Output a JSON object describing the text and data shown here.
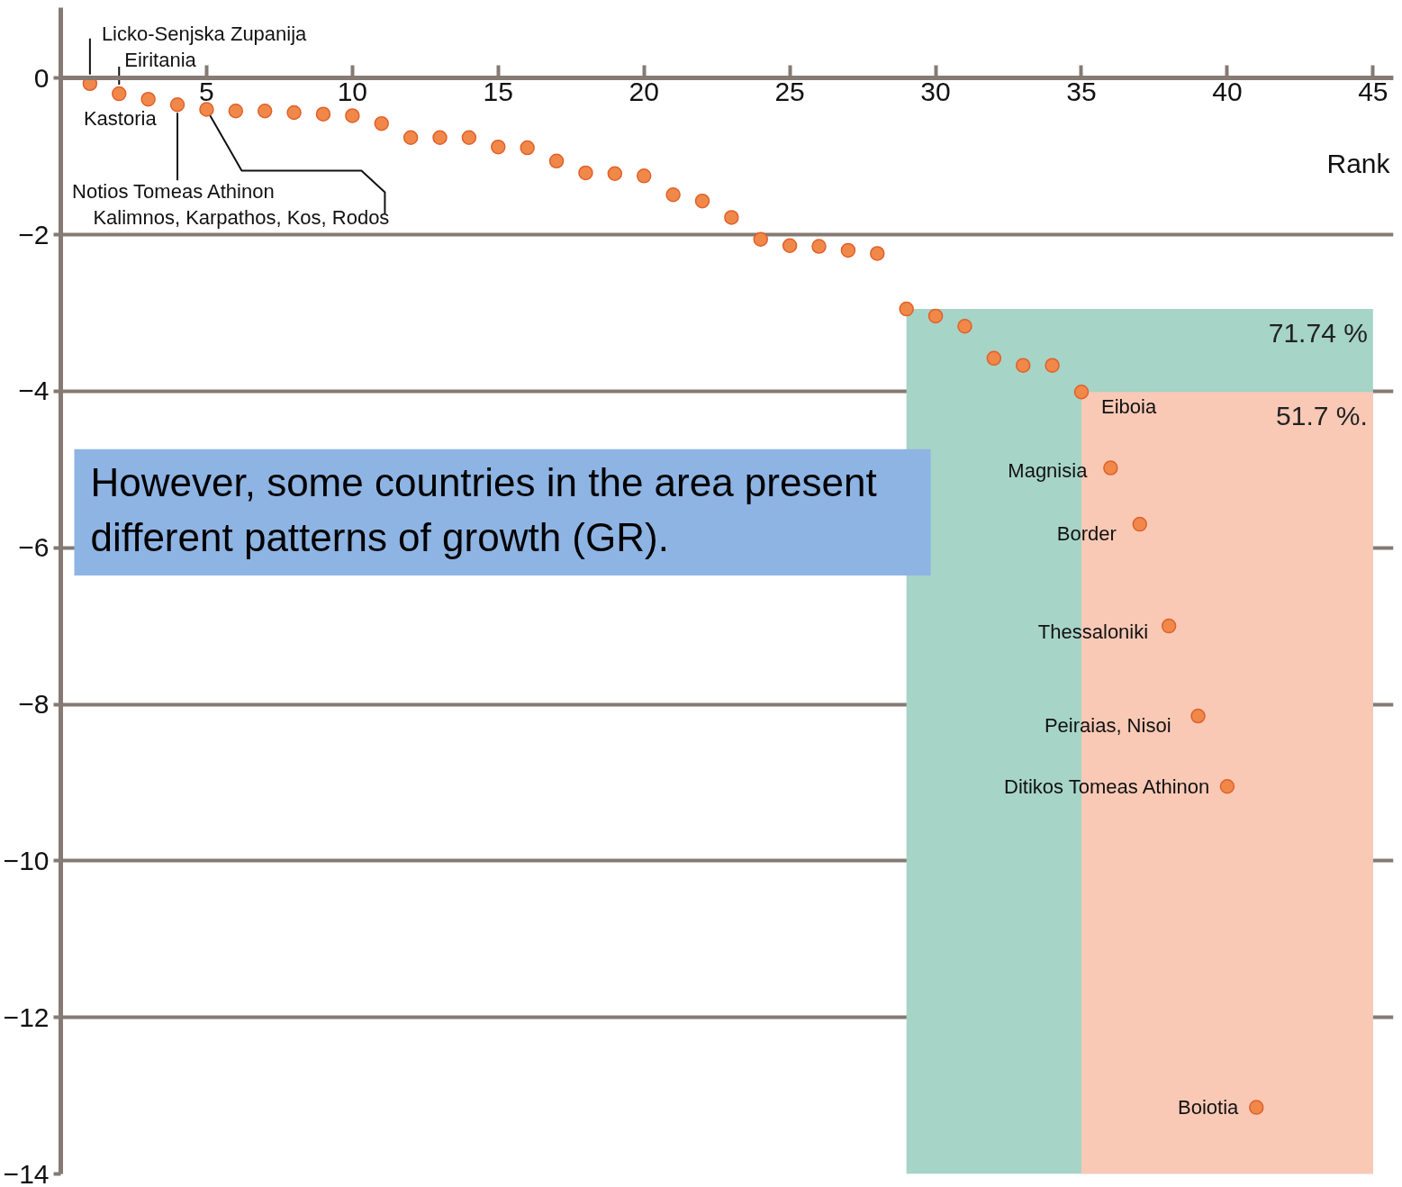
{
  "chart_data": {
    "type": "scatter",
    "xlabel": "Rank",
    "color": "#f0884a",
    "marker": "circle",
    "grid": "y",
    "x": [
      1,
      2,
      3,
      4,
      5,
      6,
      7,
      8,
      9,
      10,
      11,
      12,
      13,
      14,
      15,
      16,
      17,
      18,
      19,
      20,
      21,
      22,
      23,
      24,
      25,
      26,
      27,
      28,
      29,
      30,
      31,
      32,
      33,
      34,
      35,
      36,
      37,
      38,
      39,
      40,
      41
    ],
    "values": [
      -0.07,
      -0.2,
      -0.27,
      -0.34,
      -0.4,
      -0.42,
      -0.42,
      -0.44,
      -0.46,
      -0.48,
      -0.58,
      -0.76,
      -0.76,
      -0.76,
      -0.88,
      -0.89,
      -1.06,
      -1.21,
      -1.22,
      -1.25,
      -1.49,
      -1.57,
      -1.78,
      -2.06,
      -2.14,
      -2.15,
      -2.2,
      -2.24,
      -2.95,
      -3.04,
      -3.17,
      -3.58,
      -3.67,
      -3.67,
      -4.01,
      -4.98,
      -5.7,
      -7.0,
      -8.15,
      -9.05,
      -13.15
    ],
    "xlim": [
      0,
      45.7
    ],
    "ylim": [
      -14,
      0.9
    ],
    "xticks": [
      5,
      10,
      15,
      20,
      25,
      30,
      35,
      40,
      45
    ],
    "yticks": [
      0,
      -2,
      -4,
      -6,
      -8,
      -10,
      -12,
      -14
    ],
    "bands": [
      {
        "axis": "x",
        "from": 29,
        "to": 45,
        "label": "71.74 %",
        "color": "#a6d4c6"
      },
      {
        "axis": "x",
        "from": 35,
        "to": 45,
        "label": "51.7 %.",
        "color": "#f9c9b6"
      }
    ],
    "annotations": [
      {
        "text": "Licko-Senjska Zupanija",
        "x": 1,
        "y": -0.07
      },
      {
        "text": "Eiritania",
        "x": 2,
        "y": -0.2
      },
      {
        "text": "Kastoria",
        "x": 3,
        "y": -0.27
      },
      {
        "text": "Notios Tomeas Athinon",
        "x": 4,
        "y": -0.34
      },
      {
        "text": "Kalimnos, Karpathos, Kos, Rodos",
        "x": 5,
        "y": -0.4
      },
      {
        "text": "Eiboia",
        "x": 35,
        "y": -4.01
      },
      {
        "text": "Magnisia",
        "x": 36,
        "y": -4.98
      },
      {
        "text": "Border",
        "x": 37,
        "y": -5.7
      },
      {
        "text": "Thessaloniki",
        "x": 38,
        "y": -7.0
      },
      {
        "text": "Peiraias, Nisoi",
        "x": 39,
        "y": -8.15
      },
      {
        "text": "Ditikos Tomeas Athinon",
        "x": 40,
        "y": -9.05
      },
      {
        "text": "Boiotia",
        "x": 41,
        "y": -13.15
      },
      "However, some countries in the area present\ndifferent patterns of growth (GR)."
    ]
  }
}
